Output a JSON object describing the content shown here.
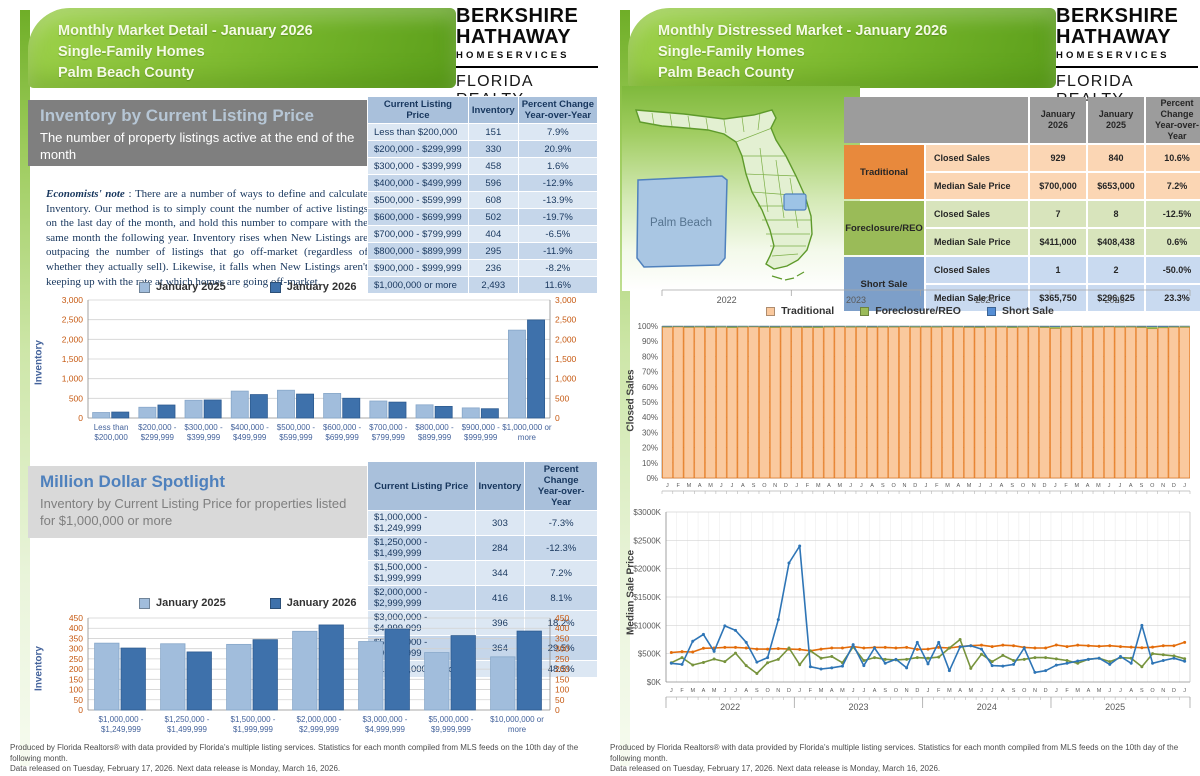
{
  "logo": {
    "line1": "BERKSHIRE",
    "line2": "HATHAWAY",
    "line3": "HOMESERVICES",
    "line4": "FLORIDA REALTY"
  },
  "footer": {
    "line1": "Produced by Florida Realtors® with data provided by Florida's multiple listing services. Statistics for each month compiled from MLS feeds on the 10th day of the following month.",
    "line2": "Data released on Tuesday, February 17, 2026. Next data release is Monday, March 16, 2026."
  },
  "left_page": {
    "header": {
      "line1": "Monthly Market Detail - January 2026",
      "line2": "Single-Family Homes",
      "line3": "Palm Beach County"
    },
    "section1": {
      "title": "Inventory by Current Listing Price",
      "subtitle": "The number of property listings active at the end of the month"
    },
    "note": {
      "lead": "Economists' note",
      "body": " :  There are a number of ways to define and calculate Inventory.  Our method is to simply count the number of active listings on the last day of the month, and hold this number to compare with the same month the following year.  Inventory rises when New Listings are outpacing the number of listings that go off-market (regardless of whether they actually sell).  Likewise, it falls when New Listings aren't keeping up with the rate at which homes are going off-market."
    },
    "table1": {
      "headers": [
        "Current Listing Price",
        "Inventory",
        "Percent Change\nYear-over-Year"
      ],
      "rows": [
        [
          "Less than $200,000",
          "151",
          "7.9%"
        ],
        [
          "$200,000 - $299,999",
          "330",
          "20.9%"
        ],
        [
          "$300,000 - $399,999",
          "458",
          "1.6%"
        ],
        [
          "$400,000 - $499,999",
          "596",
          "-12.9%"
        ],
        [
          "$500,000 - $599,999",
          "608",
          "-13.9%"
        ],
        [
          "$600,000 - $699,999",
          "502",
          "-19.7%"
        ],
        [
          "$700,000 - $799,999",
          "404",
          "-6.5%"
        ],
        [
          "$800,000 - $899,999",
          "295",
          "-11.9%"
        ],
        [
          "$900,000 - $999,999",
          "236",
          "-8.2%"
        ],
        [
          "$1,000,000 or more",
          "2,493",
          "11.6%"
        ]
      ]
    },
    "section2": {
      "title": "Million Dollar Spotlight",
      "subtitle": "Inventory by Current Listing Price for properties listed for $1,000,000 or more"
    },
    "table2": {
      "headers": [
        "Current Listing Price",
        "Inventory",
        "Percent Change\nYear-over-Year"
      ],
      "rows": [
        [
          "$1,000,000 - $1,249,999",
          "303",
          "-7.3%"
        ],
        [
          "$1,250,000 - $1,499,999",
          "284",
          "-12.3%"
        ],
        [
          "$1,500,000 - $1,999,999",
          "344",
          "7.2%"
        ],
        [
          "$2,000,000 - $2,999,999",
          "416",
          "8.1%"
        ],
        [
          "$3,000,000 - $4,999,999",
          "396",
          "18.2%"
        ],
        [
          "$5,000,000 - $9,999,999",
          "364",
          "29.5%"
        ],
        [
          "$10,000,000 or more",
          "386",
          "48.5%"
        ]
      ]
    }
  },
  "right_page": {
    "header": {
      "line1": "Monthly Distressed Market - January 2026",
      "line2": "Single-Family Homes",
      "line3": "Palm Beach County"
    },
    "map_label": "Palm Beach",
    "table3": {
      "col_headers": [
        "January 2026",
        "January 2025",
        "Percent Change\nYear-over-Year"
      ],
      "groups": [
        {
          "label": "Traditional",
          "color": "#E8893C",
          "light": "#FBD6B4",
          "rows": [
            [
              "Closed Sales",
              "929",
              "840",
              "10.6%"
            ],
            [
              "Median Sale Price",
              "$700,000",
              "$653,000",
              "7.2%"
            ]
          ]
        },
        {
          "label": "Foreclosure/REO",
          "color": "#9ABB58",
          "light": "#D8E4BC",
          "rows": [
            [
              "Closed Sales",
              "7",
              "8",
              "-12.5%"
            ],
            [
              "Median Sale Price",
              "$411,000",
              "$408,438",
              "0.6%"
            ]
          ]
        },
        {
          "label": "Short Sale",
          "color": "#7D9FC9",
          "light": "#C9DAF0",
          "rows": [
            [
              "Closed Sales",
              "1",
              "2",
              "-50.0%"
            ],
            [
              "Median Sale Price",
              "$365,750",
              "$296,625",
              "23.3%"
            ]
          ]
        }
      ]
    }
  },
  "chart_data": [
    {
      "id": "chart1",
      "type": "bar",
      "title": "Inventory by Current Listing Price",
      "ylabel": "Inventory",
      "ylim": [
        0,
        3000
      ],
      "ystep": 500,
      "grid": true,
      "legend_position": "top",
      "categories": [
        "Less than $200,000",
        "$200,000 - $299,999",
        "$300,000 - $399,999",
        "$400,000 - $499,999",
        "$500,000 - $599,999",
        "$600,000 - $699,999",
        "$700,000 - $799,999",
        "$800,000 - $899,999",
        "$900,000 - $999,999",
        "$1,000,000 or more"
      ],
      "cat_lines": [
        [
          "Less than",
          "$200,000"
        ],
        [
          "$200,000 -",
          "$299,999"
        ],
        [
          "$300,000 -",
          "$399,999"
        ],
        [
          "$400,000 -",
          "$499,999"
        ],
        [
          "$500,000 -",
          "$599,999"
        ],
        [
          "$600,000 -",
          "$699,999"
        ],
        [
          "$700,000 -",
          "$799,999"
        ],
        [
          "$800,000 -",
          "$899,999"
        ],
        [
          "$900,000 -",
          "$999,999"
        ],
        [
          "$1,000,000 or",
          "more"
        ]
      ],
      "series": [
        {
          "name": "January 2025",
          "fill": "#A1BDDC",
          "stroke": "#87A7C9",
          "values": [
            140,
            273,
            451,
            684,
            706,
            625,
            432,
            335,
            257,
            2234
          ]
        },
        {
          "name": "January 2026",
          "fill": "#3E71AB",
          "stroke": "#2E5C91",
          "values": [
            151,
            330,
            458,
            596,
            608,
            502,
            404,
            295,
            236,
            2493
          ]
        }
      ]
    },
    {
      "id": "chart2",
      "type": "bar",
      "title": "Million Dollar Spotlight",
      "ylabel": "Inventory",
      "ylim": [
        0,
        450
      ],
      "ystep": 50,
      "grid": true,
      "legend_position": "top",
      "categories": [
        "$1,000,000 - $1,249,999",
        "$1,250,000 - $1,499,999",
        "$1,500,000 - $1,999,999",
        "$2,000,000 - $2,999,999",
        "$3,000,000 - $4,999,999",
        "$5,000,000 - $9,999,999",
        "$10,000,000 or more"
      ],
      "cat_lines": [
        [
          "$1,000,000 -",
          "$1,249,999"
        ],
        [
          "$1,250,000 -",
          "$1,499,999"
        ],
        [
          "$1,500,000 -",
          "$1,999,999"
        ],
        [
          "$2,000,000 -",
          "$2,999,999"
        ],
        [
          "$3,000,000 -",
          "$4,999,999"
        ],
        [
          "$5,000,000 -",
          "$9,999,999"
        ],
        [
          "$10,000,000 or",
          "more"
        ]
      ],
      "series": [
        {
          "name": "January 2025",
          "fill": "#A1BDDC",
          "stroke": "#87A7C9",
          "values": [
            327,
            324,
            321,
            385,
            335,
            281,
            260
          ]
        },
        {
          "name": "January 2026",
          "fill": "#3E71AB",
          "stroke": "#2E5C91",
          "values": [
            303,
            284,
            344,
            416,
            396,
            364,
            386
          ]
        }
      ]
    },
    {
      "id": "chart3",
      "type": "bar",
      "subtype": "stacked-100",
      "ylabel": "Closed Sales",
      "ylim": [
        0,
        100
      ],
      "ystep": 10,
      "ytick_suffix": "%",
      "legend_position": "top",
      "month_letters": [
        "J",
        "F",
        "M",
        "A",
        "M",
        "J",
        "J",
        "A",
        "S",
        "O",
        "N",
        "D"
      ],
      "years": [
        "2022",
        "2023",
        "2024",
        "2025"
      ],
      "series": [
        {
          "name": "Traditional",
          "fill": "#FAC99E",
          "stroke": "#E26C09",
          "values": [
            99.2,
            99.4,
            99.1,
            99.3,
            99.0,
            99.2,
            98.9,
            99.3,
            99.4,
            99.1,
            99.0,
            99.3,
            99.1,
            99.0,
            98.9,
            99.3,
            99.4,
            99.2,
            99.3,
            99.1,
            99.2,
            99.3,
            99.4,
            99.2,
            99.3,
            99.2,
            99.4,
            99.3,
            99.1,
            99.0,
            99.2,
            99.3,
            98.9,
            99.2,
            99.4,
            99.0,
            98.4,
            99.3,
            99.5,
            99.2,
            99.3,
            99.4,
            99.2,
            99.3,
            99.0,
            98.2,
            98.8,
            99.2,
            99.1
          ]
        },
        {
          "name": "Foreclosure/REO",
          "fill": "#9BBB59",
          "stroke": "#77933C",
          "values": [
            0.5,
            0.4,
            0.6,
            0.5,
            0.7,
            0.6,
            0.8,
            0.5,
            0.4,
            0.6,
            0.7,
            0.5,
            0.6,
            0.7,
            0.8,
            0.5,
            0.4,
            0.6,
            0.5,
            0.6,
            0.6,
            0.5,
            0.4,
            0.6,
            0.5,
            0.6,
            0.4,
            0.5,
            0.6,
            0.7,
            0.6,
            0.5,
            0.8,
            0.6,
            0.4,
            0.7,
            1.2,
            0.5,
            0.4,
            0.6,
            0.5,
            0.4,
            0.6,
            0.5,
            0.7,
            1.4,
            0.8,
            0.5,
            0.7
          ]
        },
        {
          "name": "Short Sale",
          "fill": "#558ED5",
          "stroke": "#376092",
          "values": "remainder-to-100"
        }
      ]
    },
    {
      "id": "chart4",
      "type": "line",
      "ylabel": "Median Sale Price",
      "ylim": [
        0,
        3000
      ],
      "ystep": 500,
      "ytick_prefix": "$",
      "ytick_suffix": "K",
      "month_letters": [
        "J",
        "F",
        "M",
        "A",
        "M",
        "J",
        "J",
        "A",
        "S",
        "O",
        "N",
        "D"
      ],
      "years": [
        "2022",
        "2023",
        "2024",
        "2025"
      ],
      "series": [
        {
          "name": "Traditional",
          "color": "#E36C0A",
          "values": [
            520,
            535,
            530,
            595,
            600,
            610,
            610,
            600,
            580,
            580,
            590,
            580,
            575,
            550,
            580,
            600,
            600,
            625,
            600,
            610,
            610,
            600,
            610,
            575,
            580,
            610,
            600,
            625,
            640,
            650,
            625,
            650,
            640,
            610,
            600,
            600,
            653,
            625,
            650,
            640,
            630,
            640,
            625,
            615,
            605,
            615,
            640,
            640,
            700
          ]
        },
        {
          "name": "Foreclosure/REO",
          "color": "#77933C",
          "values": [
            340,
            430,
            300,
            345,
            405,
            360,
            510,
            290,
            150,
            340,
            400,
            600,
            305,
            550,
            420,
            450,
            340,
            620,
            380,
            430,
            400,
            390,
            400,
            430,
            420,
            440,
            600,
            750,
            240,
            490,
            360,
            470,
            380,
            400,
            430,
            430,
            408,
            380,
            330,
            400,
            420,
            360,
            430,
            420,
            270,
            500,
            480,
            460,
            411
          ]
        },
        {
          "name": "Short Sale",
          "color": "#2E75B6",
          "values": [
            330,
            310,
            720,
            840,
            540,
            990,
            910,
            700,
            350,
            430,
            1100,
            2100,
            2400,
            270,
            230,
            250,
            280,
            660,
            290,
            600,
            330,
            400,
            250,
            700,
            320,
            700,
            200,
            620,
            640,
            580,
            290,
            280,
            310,
            600,
            170,
            200,
            297,
            330,
            370,
            400,
            420,
            310,
            450,
            330,
            1000,
            330,
            380,
            420,
            366
          ]
        }
      ]
    }
  ]
}
